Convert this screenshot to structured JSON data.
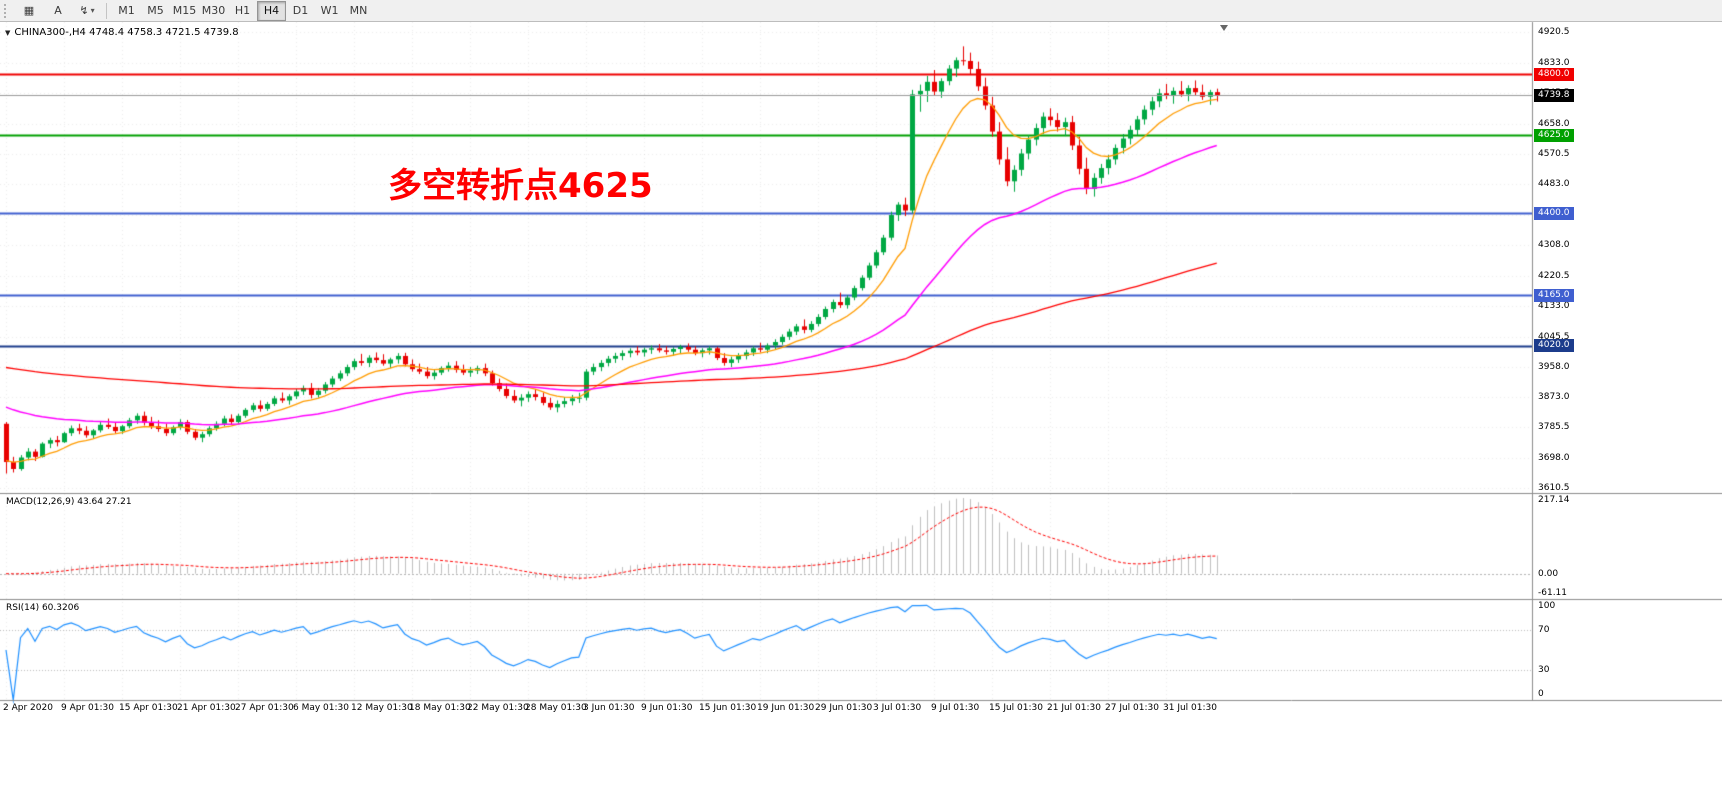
{
  "toolbar": {
    "left_buttons": [
      {
        "name": "chart-type",
        "glyph": "▦",
        "dropdown": false
      },
      {
        "name": "text-tool",
        "glyph": "A",
        "dropdown": false
      },
      {
        "name": "quick-menu",
        "glyph": "↯",
        "dropdown": true
      }
    ],
    "timeframes": [
      "M1",
      "M5",
      "M15",
      "M30",
      "H1",
      "H4",
      "D1",
      "W1",
      "MN"
    ],
    "active_timeframe": "H4"
  },
  "chart": {
    "symbol_header": "CHINA300-,H4 4748.4 4758.3 4721.5 4739.8",
    "collapse_icon": "▼",
    "annotation": {
      "text": "多空转折点4625",
      "color": "#ff0000"
    },
    "price_top": 4950,
    "price_bottom": 3596,
    "levels": [
      {
        "price": 4800.0,
        "label": "4800.0",
        "color": "#f00000",
        "width": 2
      },
      {
        "price": 4625.0,
        "label": "4625.0",
        "color": "#00a000",
        "width": 2
      },
      {
        "price": 4400.0,
        "label": "4400.0",
        "color": "#3f5fd0",
        "width": 2
      },
      {
        "price": 4165.0,
        "label": "4165.0",
        "color": "#3f5fd0",
        "width": 2
      },
      {
        "price": 4020.0,
        "label": "4020.0",
        "color": "#1c3c8c",
        "width": 2
      }
    ],
    "current_price": {
      "value": 4739.8,
      "label": "4739.8",
      "bg": "#000000",
      "fg": "#ffffff"
    },
    "price_axis_labels": [
      "4920.5",
      "4833.0",
      "4745.5",
      "4658.0",
      "4570.5",
      "4483.0",
      "4395.5",
      "4308.0",
      "4220.5",
      "4133.0",
      "4045.5",
      "3958.0",
      "3873.0",
      "3785.5",
      "3698.0",
      "3610.5"
    ],
    "colors": {
      "up": "#00a843",
      "down": "#e80000",
      "ma_fast": "#ff9c00",
      "ma_mid": "#ff00ff",
      "ma_slow": "#ff0000"
    },
    "candles": [
      [
        3795,
        3800,
        3652,
        3685
      ],
      [
        3685,
        3700,
        3655,
        3665
      ],
      [
        3665,
        3705,
        3660,
        3698
      ],
      [
        3698,
        3725,
        3690,
        3715
      ],
      [
        3715,
        3722,
        3688,
        3700
      ],
      [
        3700,
        3742,
        3698,
        3738
      ],
      [
        3738,
        3755,
        3725,
        3748
      ],
      [
        3748,
        3760,
        3730,
        3742
      ],
      [
        3742,
        3772,
        3740,
        3768
      ],
      [
        3768,
        3790,
        3760,
        3782
      ],
      [
        3782,
        3795,
        3765,
        3775
      ],
      [
        3775,
        3788,
        3755,
        3762
      ],
      [
        3762,
        3780,
        3752,
        3776
      ],
      [
        3776,
        3800,
        3770,
        3792
      ],
      [
        3792,
        3810,
        3780,
        3786
      ],
      [
        3786,
        3798,
        3768,
        3774
      ],
      [
        3774,
        3792,
        3766,
        3788
      ],
      [
        3788,
        3812,
        3782,
        3805
      ],
      [
        3805,
        3825,
        3795,
        3818
      ],
      [
        3818,
        3830,
        3790,
        3798
      ],
      [
        3798,
        3815,
        3780,
        3788
      ],
      [
        3788,
        3805,
        3772,
        3780
      ],
      [
        3780,
        3795,
        3760,
        3768
      ],
      [
        3768,
        3790,
        3762,
        3785
      ],
      [
        3785,
        3808,
        3778,
        3800
      ],
      [
        3800,
        3806,
        3765,
        3772
      ],
      [
        3772,
        3780,
        3748,
        3755
      ],
      [
        3755,
        3772,
        3742,
        3765
      ],
      [
        3765,
        3788,
        3758,
        3782
      ],
      [
        3782,
        3802,
        3775,
        3795
      ],
      [
        3795,
        3818,
        3788,
        3810
      ],
      [
        3810,
        3822,
        3792,
        3800
      ],
      [
        3800,
        3824,
        3795,
        3818
      ],
      [
        3818,
        3840,
        3812,
        3835
      ],
      [
        3835,
        3855,
        3828,
        3848
      ],
      [
        3848,
        3862,
        3830,
        3838
      ],
      [
        3838,
        3858,
        3832,
        3852
      ],
      [
        3852,
        3875,
        3846,
        3868
      ],
      [
        3868,
        3885,
        3855,
        3862
      ],
      [
        3862,
        3880,
        3850,
        3874
      ],
      [
        3874,
        3895,
        3866,
        3888
      ],
      [
        3888,
        3905,
        3878,
        3898
      ],
      [
        3898,
        3912,
        3868,
        3878
      ],
      [
        3878,
        3898,
        3870,
        3890
      ],
      [
        3890,
        3915,
        3882,
        3908
      ],
      [
        3908,
        3932,
        3900,
        3925
      ],
      [
        3925,
        3948,
        3918,
        3940
      ],
      [
        3940,
        3965,
        3932,
        3958
      ],
      [
        3958,
        3982,
        3950,
        3975
      ],
      [
        3975,
        3996,
        3962,
        3970
      ],
      [
        3970,
        3992,
        3958,
        3985
      ],
      [
        3985,
        4000,
        3970,
        3978
      ],
      [
        3978,
        3995,
        3962,
        3968
      ],
      [
        3968,
        3985,
        3955,
        3980
      ],
      [
        3980,
        3998,
        3968,
        3990
      ],
      [
        3990,
        3999,
        3960,
        3966
      ],
      [
        3966,
        3980,
        3945,
        3952
      ],
      [
        3952,
        3968,
        3938,
        3945
      ],
      [
        3945,
        3958,
        3925,
        3932
      ],
      [
        3932,
        3950,
        3922,
        3942
      ],
      [
        3942,
        3960,
        3935,
        3955
      ],
      [
        3955,
        3972,
        3945,
        3962
      ],
      [
        3962,
        3975,
        3942,
        3950
      ],
      [
        3950,
        3965,
        3935,
        3942
      ],
      [
        3942,
        3958,
        3930,
        3948
      ],
      [
        3948,
        3962,
        3938,
        3955
      ],
      [
        3955,
        3968,
        3932,
        3940
      ],
      [
        3940,
        3948,
        3905,
        3912
      ],
      [
        3912,
        3925,
        3888,
        3895
      ],
      [
        3895,
        3910,
        3868,
        3875
      ],
      [
        3875,
        3892,
        3855,
        3862
      ],
      [
        3862,
        3880,
        3845,
        3870
      ],
      [
        3870,
        3888,
        3858,
        3880
      ],
      [
        3880,
        3895,
        3862,
        3872
      ],
      [
        3872,
        3885,
        3848,
        3855
      ],
      [
        3855,
        3870,
        3835,
        3842
      ],
      [
        3842,
        3862,
        3828,
        3852
      ],
      [
        3852,
        3872,
        3842,
        3860
      ],
      [
        3860,
        3878,
        3848,
        3868
      ],
      [
        3868,
        3884,
        3855,
        3870
      ],
      [
        3870,
        3952,
        3862,
        3945
      ],
      [
        3945,
        3968,
        3935,
        3958
      ],
      [
        3958,
        3978,
        3946,
        3970
      ],
      [
        3970,
        3990,
        3960,
        3982
      ],
      [
        3982,
        3999,
        3970,
        3990
      ],
      [
        3990,
        4006,
        3978,
        3998
      ],
      [
        3998,
        4012,
        3986,
        4005
      ],
      [
        4005,
        4018,
        3992,
        4000
      ],
      [
        4000,
        4014,
        3988,
        4008
      ],
      [
        4008,
        4020,
        3996,
        4012
      ],
      [
        4012,
        4024,
        4000,
        4006
      ],
      [
        4006,
        4018,
        3994,
        4002
      ],
      [
        4002,
        4015,
        3990,
        4010
      ],
      [
        4010,
        4022,
        3998,
        4016
      ],
      [
        4016,
        4026,
        4002,
        4008
      ],
      [
        4008,
        4018,
        3992,
        3998
      ],
      [
        3998,
        4012,
        3986,
        4006
      ],
      [
        4006,
        4018,
        3994,
        4012
      ],
      [
        4012,
        4016,
        3978,
        3984
      ],
      [
        3984,
        3998,
        3962,
        3970
      ],
      [
        3970,
        3988,
        3958,
        3980
      ],
      [
        3980,
        3998,
        3970,
        3990
      ],
      [
        3990,
        4008,
        3980,
        4000
      ],
      [
        4000,
        4018,
        3990,
        4012
      ],
      [
        4012,
        4028,
        4000,
        4008
      ],
      [
        4008,
        4026,
        3998,
        4020
      ],
      [
        4020,
        4038,
        4010,
        4030
      ],
      [
        4030,
        4052,
        4022,
        4045
      ],
      [
        4045,
        4068,
        4036,
        4060
      ],
      [
        4060,
        4082,
        4050,
        4075
      ],
      [
        4075,
        4095,
        4055,
        4065
      ],
      [
        4065,
        4090,
        4058,
        4082
      ],
      [
        4082,
        4110,
        4075,
        4102
      ],
      [
        4102,
        4132,
        4095,
        4125
      ],
      [
        4125,
        4152,
        4115,
        4145
      ],
      [
        4145,
        4172,
        4128,
        4136
      ],
      [
        4136,
        4165,
        4126,
        4158
      ],
      [
        4158,
        4192,
        4150,
        4185
      ],
      [
        4185,
        4222,
        4178,
        4215
      ],
      [
        4215,
        4258,
        4208,
        4250
      ],
      [
        4250,
        4295,
        4242,
        4288
      ],
      [
        4288,
        4338,
        4280,
        4330
      ],
      [
        4330,
        4405,
        4322,
        4395
      ],
      [
        4395,
        4432,
        4378,
        4425
      ],
      [
        4425,
        4445,
        4392,
        4408
      ],
      [
        4408,
        4755,
        4400,
        4742
      ],
      [
        4742,
        4770,
        4692,
        4752
      ],
      [
        4752,
        4795,
        4720,
        4778
      ],
      [
        4778,
        4812,
        4740,
        4750
      ],
      [
        4750,
        4788,
        4732,
        4780
      ],
      [
        4780,
        4826,
        4768,
        4816
      ],
      [
        4816,
        4848,
        4792,
        4840
      ],
      [
        4840,
        4880,
        4825,
        4838
      ],
      [
        4838,
        4862,
        4800,
        4815
      ],
      [
        4815,
        4836,
        4752,
        4765
      ],
      [
        4765,
        4790,
        4698,
        4710
      ],
      [
        4710,
        4735,
        4620,
        4635
      ],
      [
        4635,
        4662,
        4540,
        4555
      ],
      [
        4555,
        4590,
        4478,
        4492
      ],
      [
        4492,
        4538,
        4462,
        4525
      ],
      [
        4525,
        4585,
        4508,
        4572
      ],
      [
        4572,
        4625,
        4555,
        4612
      ],
      [
        4612,
        4658,
        4595,
        4645
      ],
      [
        4645,
        4690,
        4628,
        4678
      ],
      [
        4678,
        4702,
        4652,
        4668
      ],
      [
        4668,
        4688,
        4635,
        4648
      ],
      [
        4648,
        4675,
        4622,
        4662
      ],
      [
        4662,
        4680,
        4582,
        4595
      ],
      [
        4595,
        4620,
        4512,
        4528
      ],
      [
        4528,
        4560,
        4455,
        4470
      ],
      [
        4470,
        4515,
        4448,
        4502
      ],
      [
        4502,
        4542,
        4485,
        4530
      ],
      [
        4530,
        4568,
        4512,
        4555
      ],
      [
        4555,
        4598,
        4540,
        4588
      ],
      [
        4588,
        4628,
        4572,
        4615
      ],
      [
        4615,
        4652,
        4598,
        4640
      ],
      [
        4640,
        4680,
        4625,
        4670
      ],
      [
        4670,
        4710,
        4655,
        4698
      ],
      [
        4698,
        4735,
        4682,
        4722
      ],
      [
        4722,
        4758,
        4705,
        4745
      ],
      [
        4745,
        4772,
        4728,
        4738
      ],
      [
        4738,
        4762,
        4715,
        4752
      ],
      [
        4752,
        4780,
        4735,
        4742
      ],
      [
        4742,
        4768,
        4722,
        4760
      ],
      [
        4760,
        4782,
        4740,
        4748
      ],
      [
        4748,
        4770,
        4726,
        4735
      ],
      [
        4735,
        4755,
        4712,
        4748.4
      ],
      [
        4748.4,
        4758.3,
        4721.5,
        4739.8
      ]
    ]
  },
  "macd": {
    "label": "MACD(12,26,9) 43.64 27.21",
    "fast": 12,
    "slow": 26,
    "signal": 9,
    "axis_labels": [
      "217.14",
      "0.00",
      "-61.11"
    ],
    "max": 217.14,
    "min": -61.11,
    "hist_color": "#c0c0c0",
    "signal_color": "#ff0000"
  },
  "rsi": {
    "label": "RSI(14) 60.3206",
    "period": 14,
    "axis_labels": [
      "100",
      "70",
      "30",
      "0"
    ],
    "levels": [
      70,
      30
    ],
    "color": "#1e90ff"
  },
  "time_axis": {
    "labels": [
      "2 Apr 2020",
      "9 Apr 01:30",
      "15 Apr 01:30",
      "21 Apr 01:30",
      "27 Apr 01:30",
      "6 May 01:30",
      "12 May 01:30",
      "18 May 01:30",
      "22 May 01:30",
      "28 May 01:30",
      "3 Jun 01:30",
      "9 Jun 01:30",
      "15 Jun 01:30",
      "19 Jun 01:30",
      "29 Jun 01:30",
      "3 Jul 01:30",
      "9 Jul 01:30",
      "15 Jul 01:30",
      "21 Jul 01:30",
      "27 Jul 01:30",
      "31 Jul 01:30"
    ]
  }
}
